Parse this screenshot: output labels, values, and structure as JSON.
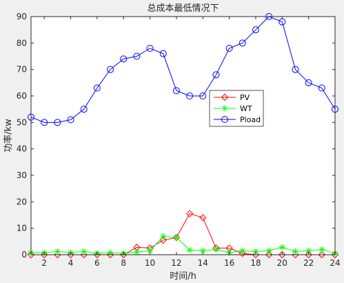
{
  "chart_data": {
    "type": "line",
    "title": "总成本最低情况下",
    "xlabel": "时间/h",
    "ylabel": "功率/kw",
    "xlim": [
      1,
      24
    ],
    "ylim": [
      0,
      90
    ],
    "xticks": [
      2,
      4,
      6,
      8,
      10,
      12,
      14,
      16,
      18,
      20,
      22,
      24
    ],
    "yticks": [
      0,
      10,
      20,
      30,
      40,
      50,
      60,
      70,
      80,
      90
    ],
    "grid": false,
    "legend_position": "center-right",
    "x": [
      1,
      2,
      3,
      4,
      5,
      6,
      7,
      8,
      9,
      10,
      11,
      12,
      13,
      14,
      15,
      16,
      17,
      18,
      19,
      20,
      21,
      22,
      23,
      24
    ],
    "series": [
      {
        "name": "PV",
        "color": "#ff0000",
        "marker": "diamond",
        "values": [
          0,
          0,
          0,
          0,
          0,
          0,
          0,
          0,
          2.8,
          2.5,
          5.5,
          6.5,
          15.5,
          14,
          2.5,
          2.5,
          0.5,
          0,
          0,
          0,
          0,
          0,
          0,
          0
        ]
      },
      {
        "name": "WT",
        "color": "#00ff00",
        "marker": "star",
        "values": [
          0.8,
          0.8,
          1.2,
          0.8,
          1.2,
          0.5,
          0.8,
          0.5,
          1,
          1.5,
          7,
          6.5,
          1.8,
          1.5,
          2,
          0.8,
          1.5,
          1.2,
          1.5,
          2.8,
          1.2,
          1.5,
          2,
          0.5
        ]
      },
      {
        "name": "Pload",
        "color": "#0000ff",
        "marker": "circle",
        "values": [
          52,
          50,
          50,
          51,
          55,
          63,
          70,
          74,
          75,
          78,
          76,
          62,
          60,
          60,
          68,
          78,
          80,
          85,
          90,
          88,
          70,
          65,
          63,
          55
        ]
      }
    ]
  }
}
